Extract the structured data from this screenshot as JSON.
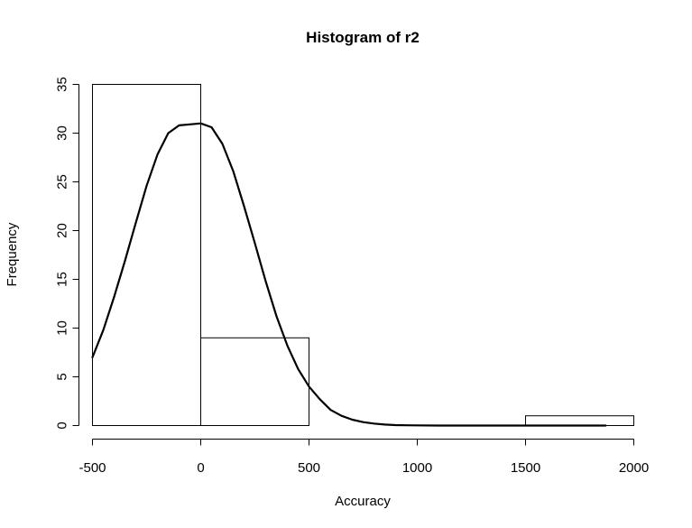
{
  "chart_data": {
    "type": "bar",
    "title": "Histogram of r2",
    "xlabel": "Accuracy",
    "ylabel": "Frequency",
    "xlim": [
      -500,
      2000
    ],
    "ylim": [
      0,
      35
    ],
    "x_ticks": [
      "-500",
      "0",
      "500",
      "1000",
      "1500",
      "2000"
    ],
    "y_ticks": [
      "0",
      "5",
      "10",
      "15",
      "20",
      "25",
      "30",
      "35"
    ],
    "bins": [
      {
        "from": -500,
        "to": 0,
        "count": 35
      },
      {
        "from": 0,
        "to": 500,
        "count": 9
      },
      {
        "from": 500,
        "to": 1000,
        "count": 0
      },
      {
        "from": 1000,
        "to": 1500,
        "count": 0
      },
      {
        "from": 1500,
        "to": 2000,
        "count": 1
      }
    ],
    "curve": {
      "x": [
        -500,
        -450,
        -400,
        -350,
        -300,
        -250,
        -200,
        -150,
        -100,
        -50,
        0,
        50,
        100,
        150,
        200,
        250,
        300,
        350,
        400,
        450,
        500,
        550,
        600,
        650,
        700,
        750,
        800,
        850,
        900,
        950,
        1000,
        1100,
        1200,
        1400,
        1600,
        1870
      ],
      "y": [
        7.0,
        9.8,
        13.2,
        16.9,
        20.8,
        24.6,
        27.8,
        30.0,
        30.8,
        30.9,
        31.0,
        30.6,
        28.9,
        26.1,
        22.5,
        18.7,
        14.8,
        11.2,
        8.2,
        5.8,
        4.0,
        2.7,
        1.6,
        1.0,
        0.6,
        0.35,
        0.2,
        0.1,
        0.05,
        0.03,
        0.02,
        0.0,
        0.0,
        0.0,
        0.0,
        0.0
      ]
    }
  }
}
